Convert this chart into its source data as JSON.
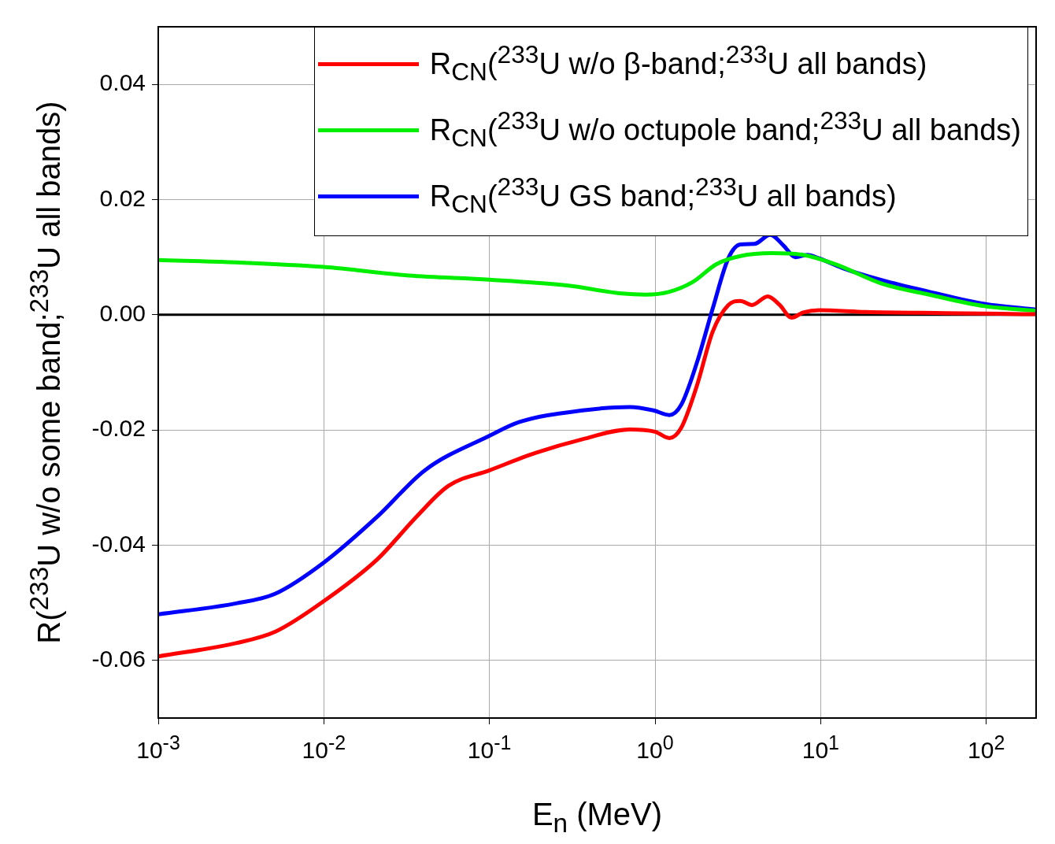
{
  "chart_data": {
    "type": "line",
    "xlabel": "E$_{n}$ (MeV)",
    "ylabel": "R($^{233}$U w/o some band;$^{233}$U all bands)",
    "log": "x",
    "xlim": [
      0.001,
      200
    ],
    "ylim": [
      -0.07,
      0.05
    ],
    "xticks": [
      {
        "value": 0.001,
        "label": "10$^{-3}$"
      },
      {
        "value": 0.01,
        "label": "10$^{-2}$"
      },
      {
        "value": 0.1,
        "label": "10$^{-1}$"
      },
      {
        "value": 1,
        "label": "10$^{0}$"
      },
      {
        "value": 10,
        "label": "10$^{1}$"
      },
      {
        "value": 100,
        "label": "10$^{2}$"
      }
    ],
    "yticks": [
      -0.06,
      -0.04,
      -0.02,
      {
        "value": 0,
        "label": "0.00"
      },
      0.02,
      0.04
    ],
    "grid": true,
    "legend": "top right",
    "ref_lines": [
      {
        "axis": "y",
        "value": 0,
        "color": "#000000"
      }
    ],
    "series": [
      {
        "name": "R$_{CN}$($^{233}$U w/o β-band;$^{233}$U all bands)",
        "color": "#ff0000",
        "x": [
          0.001,
          0.00295,
          0.0051,
          0.01,
          0.0211,
          0.0364,
          0.0565,
          0.1,
          0.189,
          0.365,
          0.704,
          1,
          1.22,
          1.44,
          1.79,
          2.23,
          2.77,
          3.27,
          3.85,
          4.79,
          5.66,
          6.67,
          7.85,
          9.78,
          18.8,
          56.4,
          200
        ],
        "values": [
          -0.0593,
          -0.057,
          -0.055,
          -0.0497,
          -0.0424,
          -0.035,
          -0.0297,
          -0.027,
          -0.024,
          -0.0216,
          -0.0199,
          -0.0203,
          -0.0214,
          -0.0196,
          -0.0123,
          -0.0029,
          0.0017,
          0.0024,
          0.0017,
          0.0032,
          0.0017,
          -0.0005,
          0.0004,
          0.0008,
          0.0005,
          0.0003,
          0.0001
        ]
      },
      {
        "name": "R$_{CN}$($^{233}$U w/o octupole band;$^{233}$U all bands)",
        "color": "#00ee00",
        "x": [
          0.001,
          0.00295,
          0.01,
          0.0327,
          0.1,
          0.293,
          0.631,
          0.877,
          1.22,
          1.69,
          2.35,
          3.27,
          5.07,
          7.85,
          12.2,
          23.5,
          45.3,
          97.7,
          200
        ],
        "values": [
          0.0095,
          0.0091,
          0.0083,
          0.0068,
          0.0061,
          0.0051,
          0.0037,
          0.0035,
          0.004,
          0.0057,
          0.0088,
          0.0102,
          0.0107,
          0.0104,
          0.0088,
          0.0054,
          0.0035,
          0.0015,
          0.0007
        ]
      },
      {
        "name": "R$_{CN}$($^{233}$U GS band;$^{233}$U all bands)",
        "color": "#0000ff",
        "x": [
          0.001,
          0.00295,
          0.0051,
          0.01,
          0.0211,
          0.0407,
          0.1,
          0.152,
          0.365,
          0.704,
          0.98,
          1.22,
          1.44,
          1.79,
          2.23,
          2.77,
          3.27,
          3.98,
          4.96,
          5.98,
          7.04,
          8.3,
          9.78,
          13.6,
          23.5,
          45.3,
          97.7,
          200
        ],
        "values": [
          -0.052,
          -0.0501,
          -0.0484,
          -0.043,
          -0.035,
          -0.027,
          -0.021,
          -0.0186,
          -0.0166,
          -0.016,
          -0.0166,
          -0.0174,
          -0.0156,
          -0.0083,
          0.0011,
          0.0098,
          0.0122,
          0.0123,
          0.0139,
          0.012,
          0.01,
          0.0104,
          0.0098,
          0.0081,
          0.006,
          0.004,
          0.0019,
          0.0009
        ]
      }
    ]
  }
}
